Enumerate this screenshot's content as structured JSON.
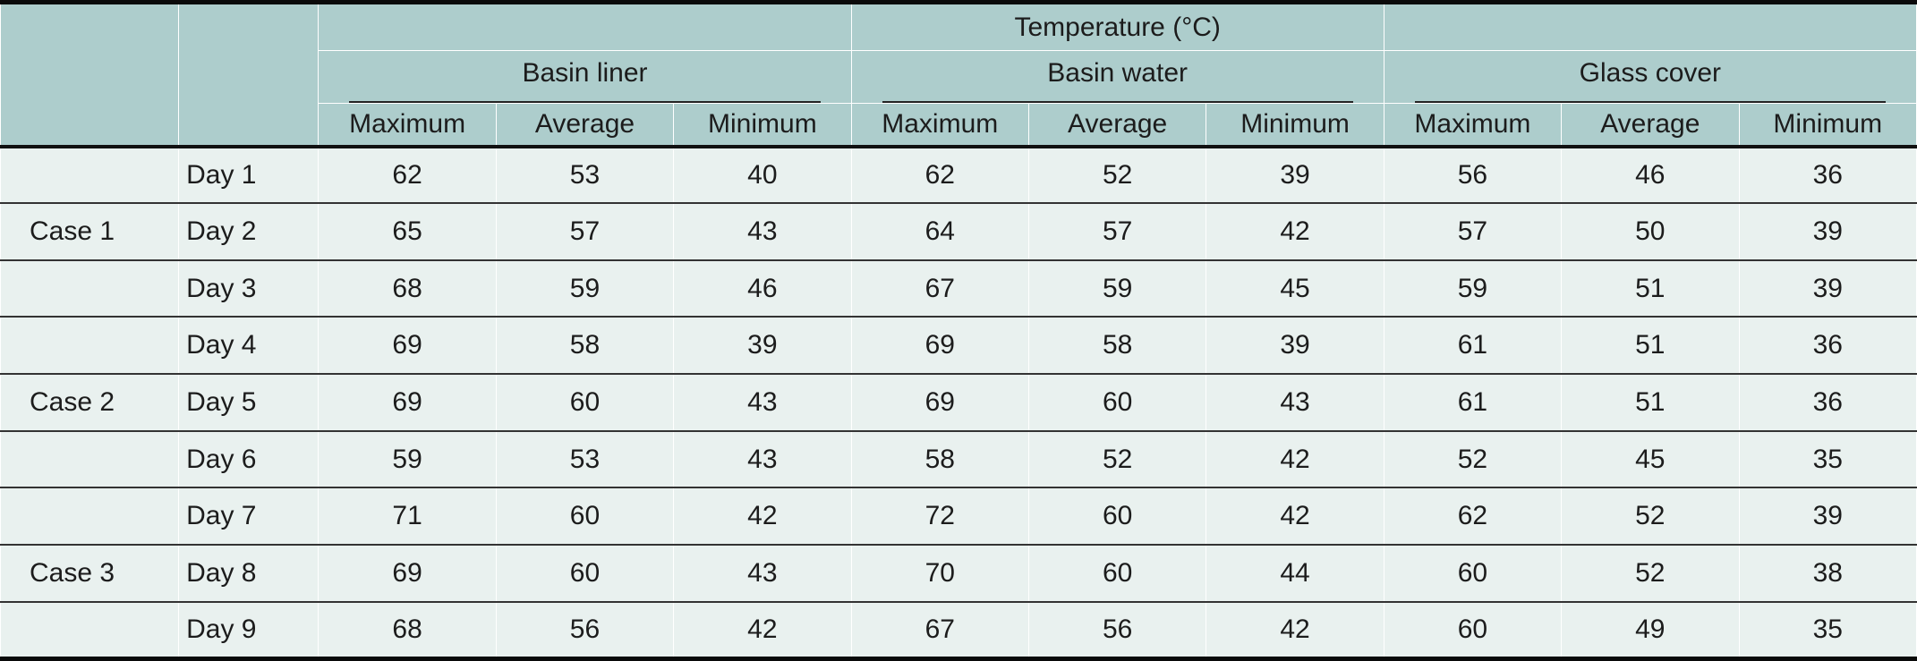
{
  "table": {
    "title": "Temperature (°C)",
    "column_groups": [
      {
        "label": "Basin liner",
        "subheaders": [
          "Maximum",
          "Average",
          "Minimum"
        ]
      },
      {
        "label": "Basin water",
        "subheaders": [
          "Maximum",
          "Average",
          "Minimum"
        ]
      },
      {
        "label": "Glass cover",
        "subheaders": [
          "Maximum",
          "Average",
          "Minimum"
        ]
      }
    ],
    "rows": [
      {
        "case": "",
        "day": "Day 1",
        "values": [
          62,
          53,
          40,
          62,
          52,
          39,
          56,
          46,
          36
        ]
      },
      {
        "case": "Case 1",
        "day": "Day 2",
        "values": [
          65,
          57,
          43,
          64,
          57,
          42,
          57,
          50,
          39
        ]
      },
      {
        "case": "",
        "day": "Day 3",
        "values": [
          68,
          59,
          46,
          67,
          59,
          45,
          59,
          51,
          39
        ]
      },
      {
        "case": "",
        "day": "Day 4",
        "values": [
          69,
          58,
          39,
          69,
          58,
          39,
          61,
          51,
          36
        ]
      },
      {
        "case": "Case 2",
        "day": "Day 5",
        "values": [
          69,
          60,
          43,
          69,
          60,
          43,
          61,
          51,
          36
        ]
      },
      {
        "case": "",
        "day": "Day 6",
        "values": [
          59,
          53,
          43,
          58,
          52,
          42,
          52,
          45,
          35
        ]
      },
      {
        "case": "",
        "day": "Day 7",
        "values": [
          71,
          60,
          42,
          72,
          60,
          42,
          62,
          52,
          39
        ]
      },
      {
        "case": "Case 3",
        "day": "Day 8",
        "values": [
          69,
          60,
          43,
          70,
          60,
          44,
          60,
          52,
          38
        ]
      },
      {
        "case": "",
        "day": "Day 9",
        "values": [
          68,
          56,
          42,
          67,
          56,
          42,
          60,
          49,
          35
        ]
      }
    ],
    "colors": {
      "header_bg": "#adcdcc",
      "body_bg": "#e9f1ef",
      "rule_dark": "#333333",
      "rule_heavy": "#0a0a0a",
      "text": "#1c1c1c"
    }
  }
}
